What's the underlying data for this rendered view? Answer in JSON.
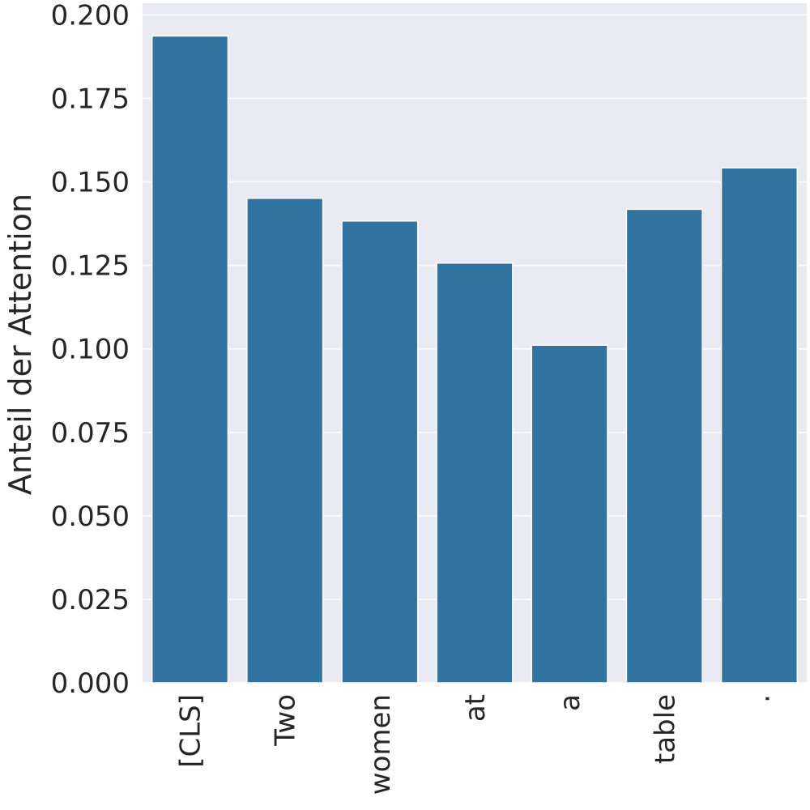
{
  "chart_data": {
    "type": "bar",
    "title": "",
    "xlabel": "",
    "ylabel": "Anteil der Attention",
    "categories": [
      "[CLS]",
      "Two",
      "women",
      "at",
      "a",
      "table",
      "."
    ],
    "values": [
      0.1937,
      0.1451,
      0.1383,
      0.1257,
      0.1011,
      0.1418,
      0.1542
    ],
    "ylim": [
      0.0,
      0.2035
    ],
    "yticks": [
      "0.000",
      "0.025",
      "0.050",
      "0.075",
      "0.100",
      "0.125",
      "0.150",
      "0.175",
      "0.200"
    ],
    "grid": true,
    "colors": {
      "bar": "#3274a1",
      "background": "#eaeaf2",
      "grid": "#ffffff",
      "text": "#262626"
    }
  }
}
